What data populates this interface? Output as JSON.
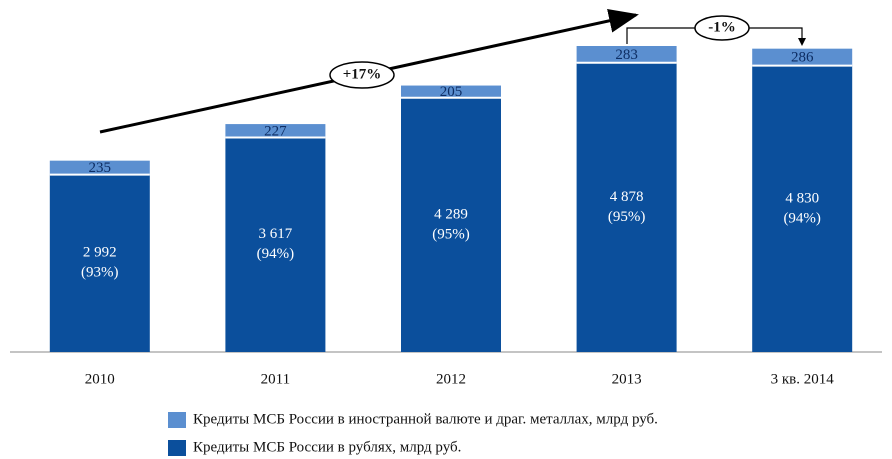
{
  "chart_data": {
    "type": "stacked-bar",
    "categories": [
      "2010",
      "2011",
      "2012",
      "2013",
      "3 кв. 2014"
    ],
    "series": [
      {
        "name": "Кредиты МСБ России в рублях, млрд руб.",
        "color": "#0b4f9c",
        "values": [
          2992,
          3617,
          4289,
          4878,
          4830
        ],
        "value_labels": [
          "2 992",
          "3 617",
          "4 289",
          "4 878",
          "4 830"
        ],
        "share_labels": [
          "(93%)",
          "(94%)",
          "(95%)",
          "(95%)",
          "(94%)"
        ]
      },
      {
        "name": "Кредиты МСБ России в иностранной валюте и драг. металлах, млрд руб.",
        "color": "#5b8fd0",
        "values": [
          235,
          227,
          205,
          283,
          286
        ]
      }
    ],
    "annotations": [
      "+17%",
      "-1%"
    ]
  }
}
